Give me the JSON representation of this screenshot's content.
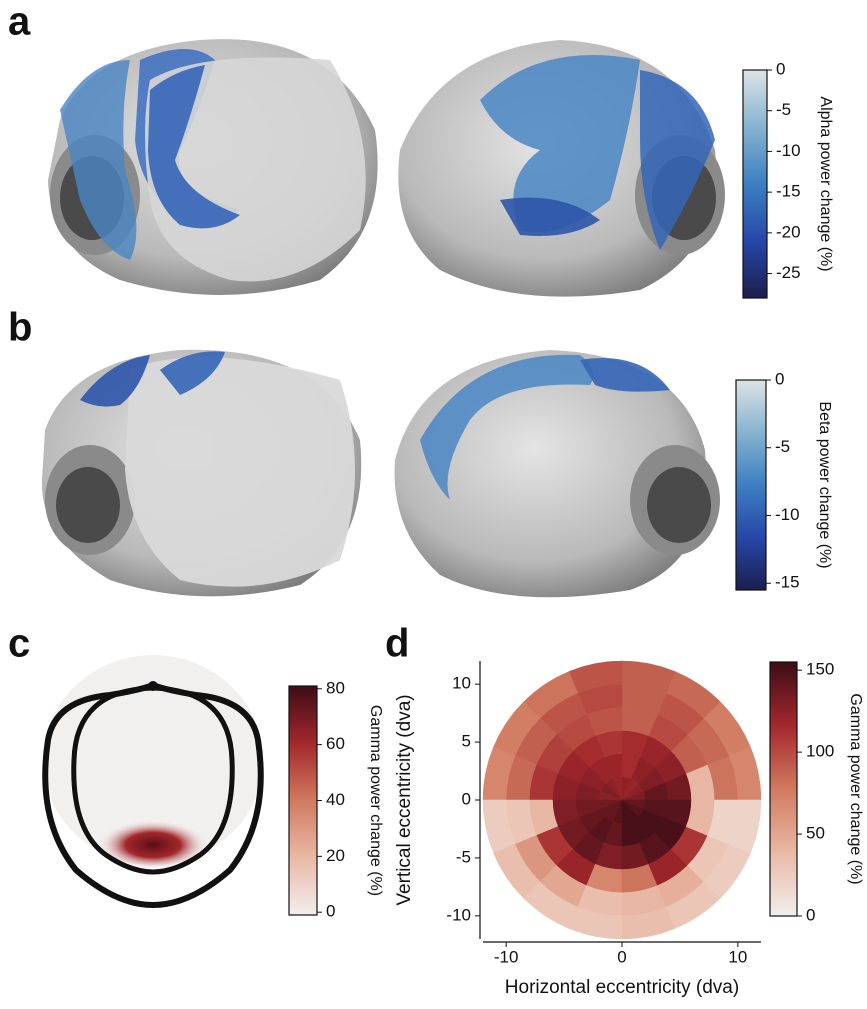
{
  "panels": [
    {
      "label": "a",
      "colorbar": {
        "label": "Alpha power change (%)",
        "lim": [
          -28,
          0
        ],
        "ticks": [
          0,
          -5,
          -10,
          -15,
          -20,
          -25
        ],
        "colors": [
          "#1b1f4d",
          "#2747a8",
          "#3d7fc2",
          "#86b3cf",
          "#dde3e6"
        ]
      }
    },
    {
      "label": "b",
      "colorbar": {
        "label": "Beta power change (%)",
        "lim": [
          -15.5,
          0
        ],
        "ticks": [
          0,
          -5,
          -10,
          -15
        ],
        "colors": [
          "#1b1f4d",
          "#2747a8",
          "#3d7fc2",
          "#86b3cf",
          "#dde3e6"
        ]
      }
    },
    {
      "label": "c",
      "colorbar": {
        "label": "Gamma power change (%)",
        "lim": [
          -1,
          81
        ],
        "ticks": [
          0,
          20,
          40,
          60,
          80
        ],
        "colors": [
          "#f3eeee",
          "#e9b9a6",
          "#d07a5f",
          "#a3282c",
          "#3d0d16"
        ]
      }
    }
  ],
  "chart_data": {
    "type": "polar_heatmap",
    "label": "d",
    "xlabel": "Horizontal eccentricity (dva)",
    "ylabel": "Vertical eccentricity (dva)",
    "xlim": [
      -12,
      12
    ],
    "ylim": [
      -12,
      12
    ],
    "xticks": [
      -10,
      0,
      10
    ],
    "yticks": [
      -10,
      -5,
      0,
      5,
      10
    ],
    "ring_edges": [
      0,
      2,
      4,
      6,
      8,
      10,
      12
    ],
    "values": [
      [
        130,
        125,
        120,
        125,
        120,
        125,
        130,
        125,
        135,
        140,
        140,
        145,
        150,
        150,
        145,
        140
      ],
      [
        140,
        130,
        125,
        115,
        120,
        120,
        125,
        130,
        135,
        140,
        145,
        140,
        150,
        150,
        150,
        145
      ],
      [
        135,
        125,
        120,
        115,
        110,
        115,
        120,
        125,
        130,
        135,
        140,
        130,
        135,
        145,
        150,
        145
      ],
      [
        40,
        90,
        100,
        90,
        95,
        100,
        105,
        110,
        40,
        110,
        120,
        70,
        80,
        120,
        110,
        40
      ],
      [
        80,
        85,
        95,
        90,
        100,
        95,
        90,
        85,
        30,
        60,
        50,
        35,
        40,
        45,
        30,
        20
      ],
      [
        70,
        75,
        85,
        90,
        95,
        80,
        75,
        70,
        25,
        35,
        30,
        30,
        35,
        30,
        25,
        20
      ]
    ],
    "clim": [
      0,
      155
    ],
    "cticks": [
      0,
      50,
      100,
      150
    ],
    "clabel": "Gamma power change (%)",
    "colors": [
      "#f3eeee",
      "#e9b9a6",
      "#d07a5f",
      "#a3282c",
      "#3d0d16"
    ]
  }
}
